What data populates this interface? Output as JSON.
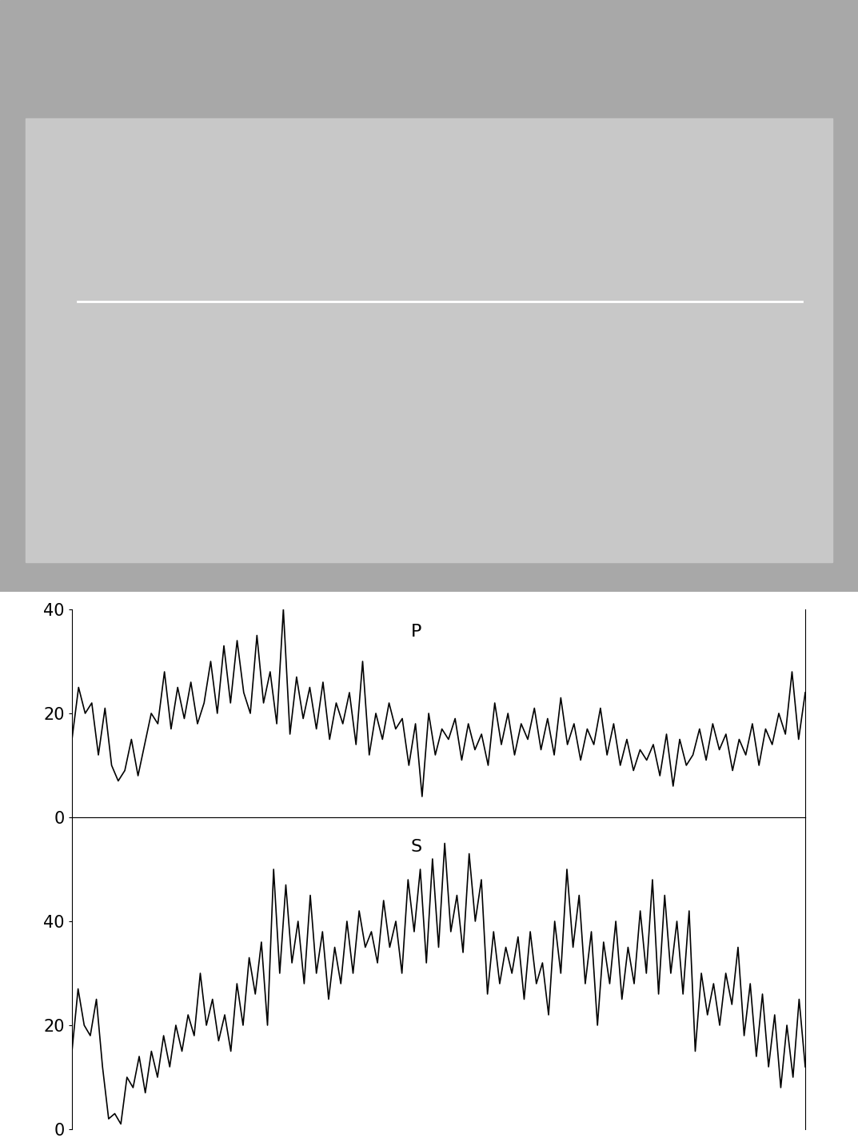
{
  "chart_data": [
    {
      "type": "line",
      "title": "P",
      "color": "#000000",
      "tick_labels": "y",
      "ylim": [
        0,
        40
      ],
      "yticks": [
        0,
        20,
        40
      ],
      "values": [
        15,
        25,
        20,
        22,
        12,
        21,
        10,
        7,
        9,
        15,
        8,
        14,
        20,
        18,
        28,
        17,
        25,
        19,
        26,
        18,
        22,
        30,
        20,
        33,
        22,
        34,
        24,
        20,
        35,
        22,
        28,
        18,
        40,
        16,
        27,
        19,
        25,
        17,
        26,
        15,
        22,
        18,
        24,
        14,
        30,
        12,
        20,
        15,
        22,
        17,
        19,
        10,
        18,
        4,
        20,
        12,
        17,
        15,
        19,
        11,
        18,
        13,
        16,
        10,
        22,
        14,
        20,
        12,
        18,
        15,
        21,
        13,
        19,
        12,
        23,
        14,
        18,
        11,
        17,
        14,
        21,
        12,
        18,
        10,
        15,
        9,
        13,
        11,
        14,
        8,
        16,
        6,
        15,
        10,
        12,
        17,
        11,
        18,
        13,
        16,
        9,
        15,
        12,
        18,
        10,
        17,
        14,
        20,
        16,
        28,
        15,
        24
      ]
    },
    {
      "type": "line",
      "title": "S",
      "color": "#000000",
      "tick_labels": "y",
      "ylim": [
        0,
        60
      ],
      "yticks": [
        0,
        20,
        40
      ],
      "values": [
        15,
        27,
        20,
        18,
        25,
        12,
        2,
        3,
        1,
        10,
        8,
        14,
        7,
        15,
        10,
        18,
        12,
        20,
        15,
        22,
        18,
        30,
        20,
        25,
        17,
        22,
        15,
        28,
        20,
        33,
        26,
        36,
        20,
        50,
        30,
        47,
        32,
        40,
        28,
        45,
        30,
        38,
        25,
        35,
        28,
        40,
        30,
        42,
        35,
        38,
        32,
        44,
        35,
        40,
        30,
        48,
        38,
        50,
        32,
        52,
        35,
        55,
        38,
        45,
        34,
        53,
        40,
        48,
        26,
        38,
        28,
        35,
        30,
        37,
        25,
        38,
        28,
        32,
        22,
        40,
        30,
        50,
        35,
        45,
        28,
        38,
        20,
        36,
        28,
        40,
        25,
        35,
        28,
        42,
        30,
        48,
        26,
        45,
        30,
        40,
        26,
        42,
        15,
        30,
        22,
        28,
        20,
        30,
        24,
        35,
        18,
        28,
        14,
        26,
        12,
        22,
        8,
        20,
        10,
        25,
        12
      ]
    }
  ]
}
